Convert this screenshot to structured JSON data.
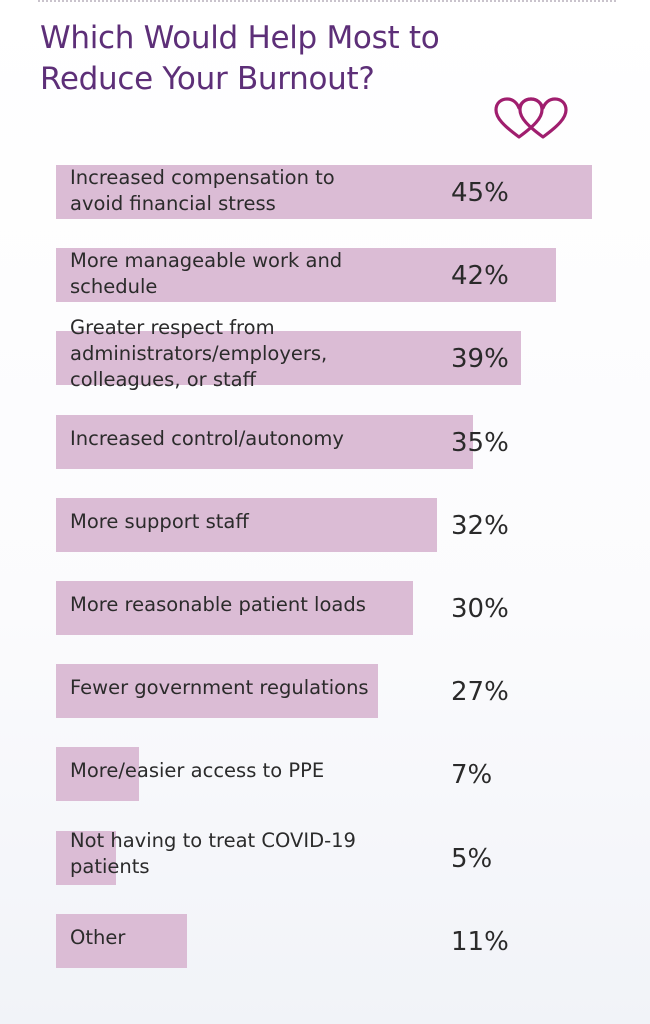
{
  "chart_data": {
    "type": "bar",
    "orientation": "horizontal",
    "title": "Which Would Help Most to Reduce Your Burnout?",
    "unit": "%",
    "xlim": [
      0,
      45
    ],
    "bar_color": "#dbbcd5",
    "title_color": "#5d2f78",
    "categories": [
      "Increased compensation to avoid financial stress",
      "More manageable work and schedule",
      "Greater respect from administrators/employers, colleagues, or staff",
      "Increased control/autonomy",
      "More support staff",
      "More reasonable patient loads",
      "Fewer government regulations",
      "More/easier access to PPE",
      "Not having to treat COVID-19 patients",
      "Other"
    ],
    "values": [
      45,
      42,
      39,
      35,
      32,
      30,
      27,
      7,
      5,
      11
    ],
    "value_labels": [
      "45%",
      "42%",
      "39%",
      "35%",
      "32%",
      "30%",
      "27%",
      "7%",
      "5%",
      "11%"
    ]
  },
  "icons": {
    "header_icon": "interlocking-hearts-icon",
    "icon_color": "#a01e6e"
  }
}
